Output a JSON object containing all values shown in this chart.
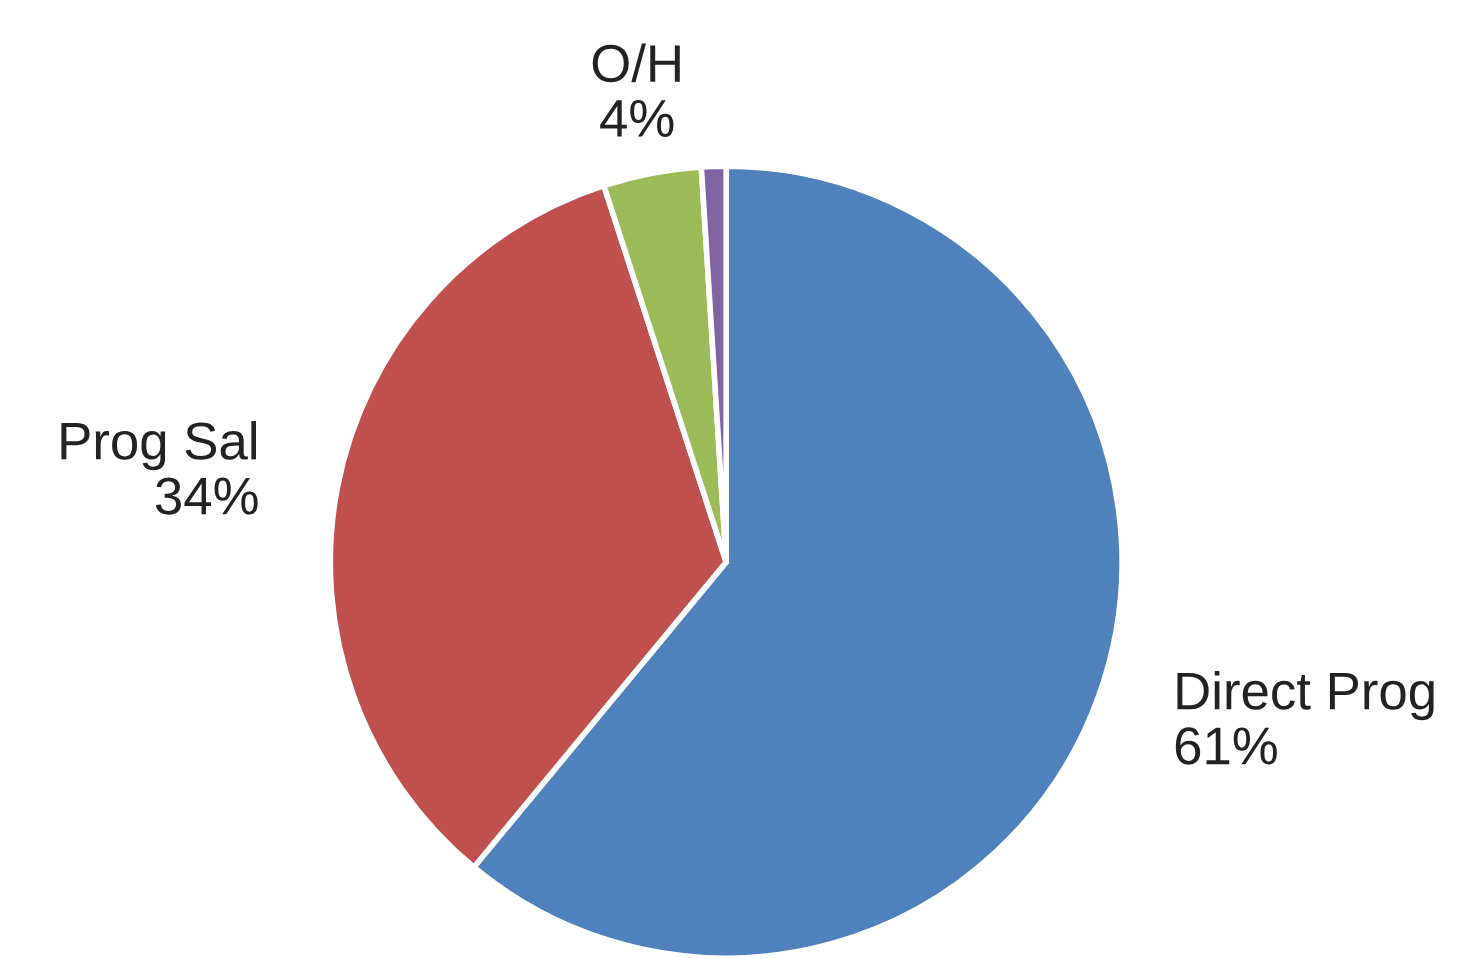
{
  "chart_data": {
    "type": "pie",
    "categories": [
      "Direct Prog",
      "Prog Sal",
      "O/H",
      null
    ],
    "values": [
      61,
      34,
      4,
      1
    ],
    "colors": [
      "#4f81bd",
      "#c0504d",
      "#9bbb59",
      "#8064a2"
    ],
    "value_labels": [
      "61%",
      "34%",
      "4%",
      null
    ]
  }
}
